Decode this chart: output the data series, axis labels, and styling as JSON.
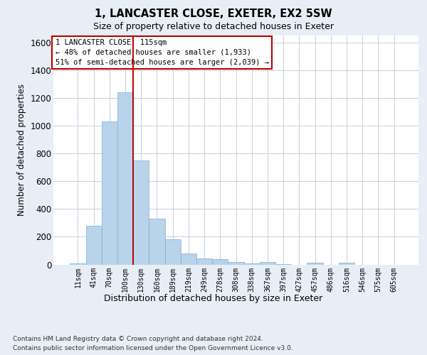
{
  "title": "1, LANCASTER CLOSE, EXETER, EX2 5SW",
  "subtitle": "Size of property relative to detached houses in Exeter",
  "xlabel": "Distribution of detached houses by size in Exeter",
  "ylabel": "Number of detached properties",
  "footer_line1": "Contains HM Land Registry data © Crown copyright and database right 2024.",
  "footer_line2": "Contains public sector information licensed under the Open Government Licence v3.0.",
  "bar_color": "#b8d3ea",
  "bar_edgecolor": "#7aafd4",
  "background_color": "#e8eef6",
  "plot_bg_color": "#ffffff",
  "grid_color": "#c8d0dc",
  "vline_color": "#bb0000",
  "vline_pos": 3.5,
  "annotation_line1": "1 LANCASTER CLOSE: 115sqm",
  "annotation_line2": "← 48% of detached houses are smaller (1,933)",
  "annotation_line3": "51% of semi-detached houses are larger (2,039) →",
  "annotation_box_edgecolor": "#bb0000",
  "ylim": [
    0,
    1650
  ],
  "yticks": [
    0,
    200,
    400,
    600,
    800,
    1000,
    1200,
    1400,
    1600
  ],
  "categories": [
    "11sqm",
    "41sqm",
    "70sqm",
    "100sqm",
    "130sqm",
    "160sqm",
    "189sqm",
    "219sqm",
    "249sqm",
    "278sqm",
    "308sqm",
    "338sqm",
    "367sqm",
    "397sqm",
    "427sqm",
    "457sqm",
    "486sqm",
    "516sqm",
    "546sqm",
    "575sqm",
    "605sqm"
  ],
  "values": [
    10,
    280,
    1030,
    1240,
    750,
    330,
    180,
    80,
    43,
    38,
    20,
    10,
    18,
    5,
    0,
    12,
    0,
    12,
    0,
    0,
    0
  ]
}
